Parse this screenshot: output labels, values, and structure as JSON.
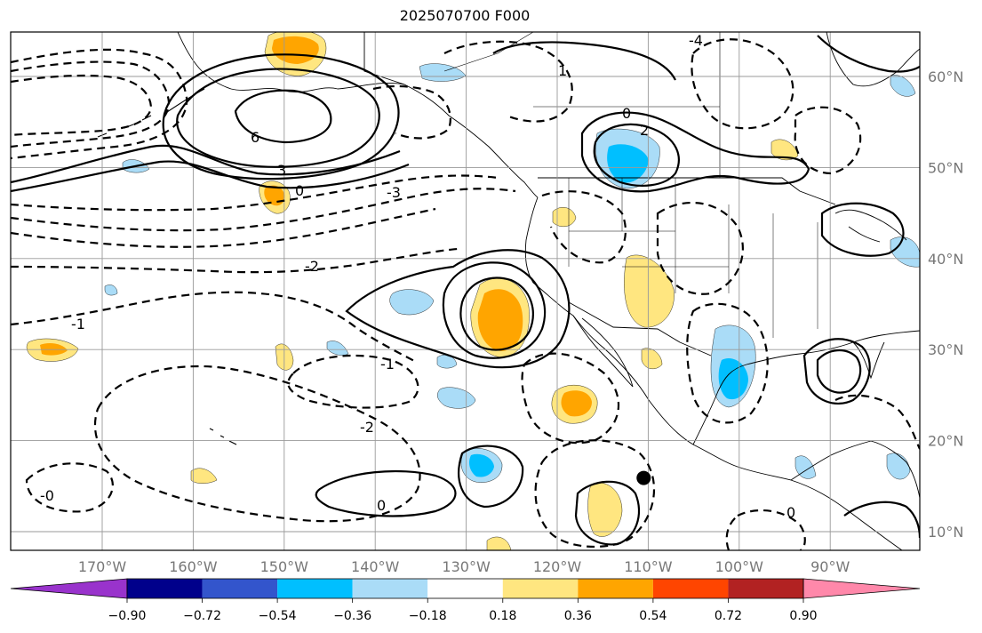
{
  "title": "2025070700 F000",
  "map": {
    "lon_labels": [
      "170°W",
      "160°W",
      "150°W",
      "140°W",
      "130°W",
      "120°W",
      "110°W",
      "100°W",
      "90°W"
    ],
    "lat_labels": [
      "60°N",
      "50°N",
      "40°N",
      "30°N",
      "20°N",
      "10°N"
    ],
    "contour_labels": [
      "6",
      "3",
      "0",
      "-1",
      "-2",
      "-3",
      "-4",
      "1",
      "2",
      "-0",
      "0",
      "-1",
      "-2",
      "0",
      "0"
    ],
    "marker": {
      "lon": -110.5,
      "lat": 15.9
    }
  },
  "colorbar": {
    "colors": [
      "#9933cc",
      "#00008b",
      "#3355cc",
      "#00bfff",
      "#aadcf7",
      "#ffffff",
      "#ffe680",
      "#ffa500",
      "#ff4500",
      "#b22222",
      "#ff88aa"
    ],
    "tick_labels": [
      "−0.90",
      "−0.72",
      "−0.54",
      "−0.36",
      "−0.18",
      "0.18",
      "0.36",
      "0.54",
      "0.72",
      "0.90"
    ]
  }
}
